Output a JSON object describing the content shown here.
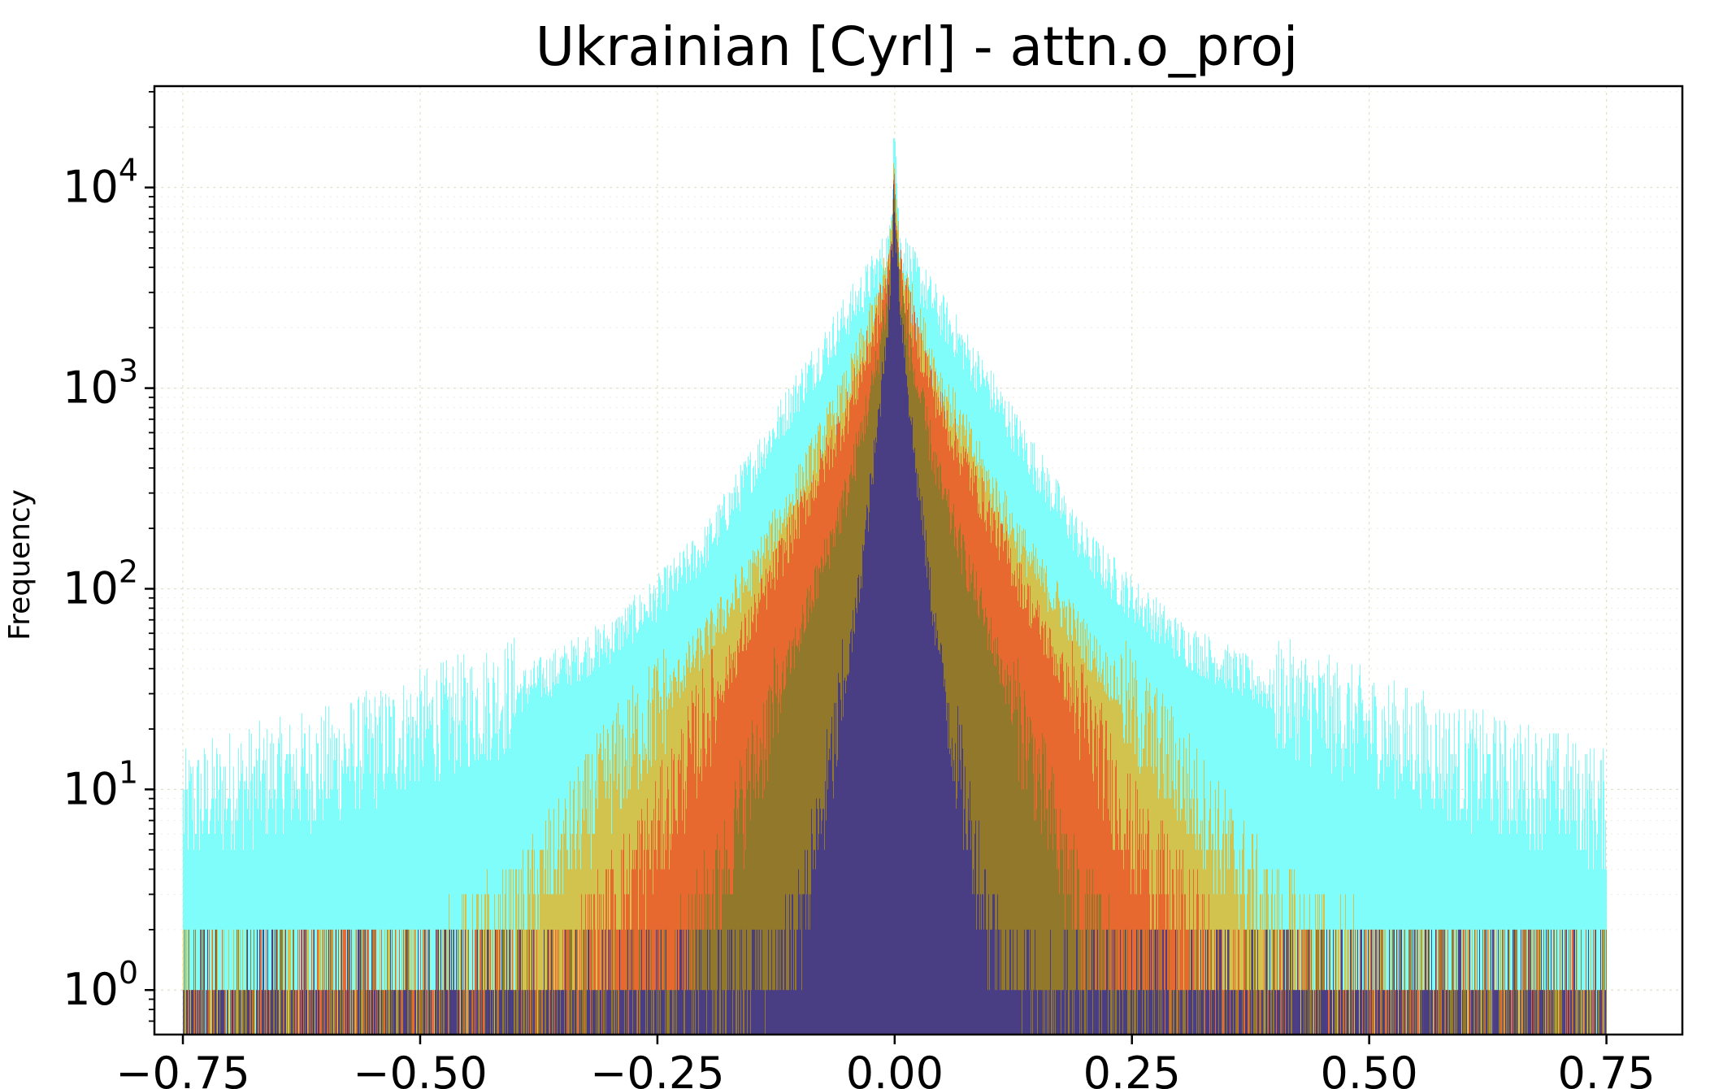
{
  "chart_data": {
    "type": "histogram",
    "title": "Ukrainian [Cyrl] - attn.o_proj",
    "xlabel": "",
    "ylabel": "Frequency",
    "yscale": "log",
    "xlim": [
      -0.78,
      0.83
    ],
    "ylim": [
      0.6,
      32000
    ],
    "grid": true,
    "x_ticks": [
      -0.75,
      -0.5,
      -0.25,
      0.0,
      0.25,
      0.5,
      0.75
    ],
    "x_tick_labels": [
      "−0.75",
      "−0.50",
      "−0.25",
      "0.00",
      "0.25",
      "0.50",
      "0.75"
    ],
    "y_ticks": [
      {
        "value": 1,
        "base": "10",
        "exp": "0"
      },
      {
        "value": 10,
        "base": "10",
        "exp": "1"
      },
      {
        "value": 100,
        "base": "10",
        "exp": "2"
      },
      {
        "value": 1000,
        "base": "10",
        "exp": "3"
      },
      {
        "value": 10000,
        "base": "10",
        "exp": "4"
      }
    ],
    "range": [
      -0.75,
      0.75
    ],
    "series": [
      {
        "color": "#7ffdfa",
        "peak": 21000,
        "profile": [
          [
            0.0,
            21000
          ],
          [
            0.005,
            5200
          ],
          [
            0.02,
            3800
          ],
          [
            0.05,
            2300
          ],
          [
            0.1,
            1000
          ],
          [
            0.15,
            400
          ],
          [
            0.2,
            160
          ],
          [
            0.25,
            90
          ],
          [
            0.3,
            55
          ],
          [
            0.4,
            30
          ],
          [
            0.5,
            20
          ],
          [
            0.6,
            13
          ],
          [
            0.7,
            10
          ],
          [
            0.75,
            8
          ]
        ]
      },
      {
        "color": "#d9be3f",
        "peak": 12000,
        "profile": [
          [
            0.0,
            12000
          ],
          [
            0.005,
            4500
          ],
          [
            0.02,
            2400
          ],
          [
            0.05,
            1000
          ],
          [
            0.1,
            330
          ],
          [
            0.15,
            120
          ],
          [
            0.2,
            55
          ],
          [
            0.25,
            25
          ],
          [
            0.3,
            12
          ],
          [
            0.35,
            5
          ],
          [
            0.4,
            2.2
          ],
          [
            0.5,
            1.2
          ],
          [
            0.6,
            0.9
          ],
          [
            0.75,
            0.7
          ]
        ]
      },
      {
        "color": "#e9622d",
        "peak": 10000,
        "profile": [
          [
            0.0,
            10000
          ],
          [
            0.005,
            4000
          ],
          [
            0.02,
            2000
          ],
          [
            0.05,
            750
          ],
          [
            0.1,
            230
          ],
          [
            0.15,
            70
          ],
          [
            0.2,
            22
          ],
          [
            0.25,
            6
          ],
          [
            0.3,
            2.5
          ],
          [
            0.35,
            1.1
          ],
          [
            0.45,
            0.7
          ],
          [
            0.75,
            0.5
          ]
        ]
      },
      {
        "color": "#8a7a2a",
        "peak": 9000,
        "profile": [
          [
            0.0,
            9000
          ],
          [
            0.005,
            3500
          ],
          [
            0.02,
            1200
          ],
          [
            0.05,
            300
          ],
          [
            0.1,
            60
          ],
          [
            0.15,
            12
          ],
          [
            0.18,
            4
          ],
          [
            0.22,
            1.5
          ],
          [
            0.28,
            0.8
          ],
          [
            0.75,
            0.4
          ]
        ]
      },
      {
        "color": "#433a8b",
        "peak": 8000,
        "profile": [
          [
            0.0,
            8000
          ],
          [
            0.005,
            3000
          ],
          [
            0.02,
            500
          ],
          [
            0.04,
            80
          ],
          [
            0.06,
            20
          ],
          [
            0.08,
            6
          ],
          [
            0.1,
            2.2
          ],
          [
            0.12,
            1.1
          ],
          [
            0.15,
            0.7
          ],
          [
            0.75,
            0.4
          ]
        ]
      }
    ]
  }
}
